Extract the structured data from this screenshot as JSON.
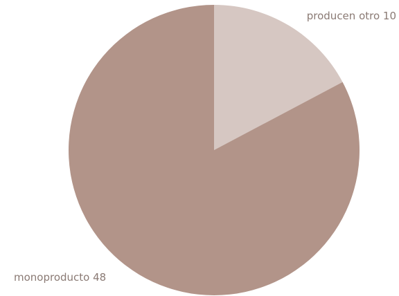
{
  "chart_data": {
    "type": "pie",
    "slices": [
      {
        "label": "producen otro 10",
        "value": 10,
        "color": "#d6c7c2"
      },
      {
        "label": "monoproducto 48",
        "value": 48,
        "color": "#b29489"
      }
    ]
  }
}
